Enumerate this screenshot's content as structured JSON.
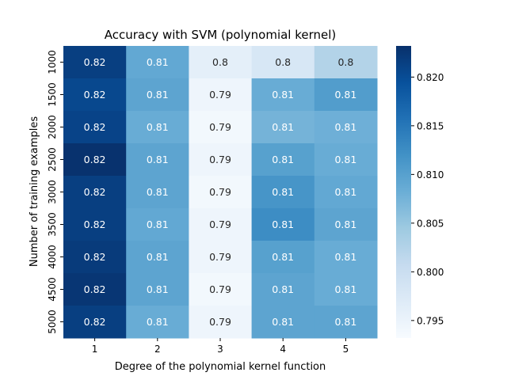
{
  "chart_data": {
    "type": "heatmap",
    "title": "Accuracy with SVM (polynomial kernel)",
    "xlabel": "Degree of the polynomial kernel function",
    "ylabel": "Number of training examples",
    "x_categories": [
      "1",
      "2",
      "3",
      "4",
      "5"
    ],
    "y_categories": [
      "1000",
      "1500",
      "2000",
      "2500",
      "3000",
      "3500",
      "4000",
      "4500",
      "5000"
    ],
    "values": [
      [
        0.8215,
        0.809,
        0.796,
        0.798,
        0.8025
      ],
      [
        0.8205,
        0.8095,
        0.7945,
        0.8085,
        0.8105
      ],
      [
        0.821,
        0.8085,
        0.794,
        0.8075,
        0.808
      ],
      [
        0.823,
        0.8095,
        0.7945,
        0.81,
        0.8085
      ],
      [
        0.8215,
        0.8095,
        0.794,
        0.8115,
        0.809
      ],
      [
        0.8215,
        0.809,
        0.7945,
        0.8125,
        0.8095
      ],
      [
        0.822,
        0.8095,
        0.7945,
        0.81,
        0.8085
      ],
      [
        0.8225,
        0.8095,
        0.794,
        0.8095,
        0.8085
      ],
      [
        0.8215,
        0.8085,
        0.7945,
        0.8095,
        0.8095
      ]
    ],
    "annotations": [
      [
        "0.82",
        "0.81",
        "0.8",
        "0.8",
        "0.8"
      ],
      [
        "0.82",
        "0.81",
        "0.79",
        "0.81",
        "0.81"
      ],
      [
        "0.82",
        "0.81",
        "0.79",
        "0.81",
        "0.81"
      ],
      [
        "0.82",
        "0.81",
        "0.79",
        "0.81",
        "0.81"
      ],
      [
        "0.82",
        "0.81",
        "0.79",
        "0.81",
        "0.81"
      ],
      [
        "0.82",
        "0.81",
        "0.79",
        "0.81",
        "0.81"
      ],
      [
        "0.82",
        "0.81",
        "0.79",
        "0.81",
        "0.81"
      ],
      [
        "0.82",
        "0.81",
        "0.79",
        "0.81",
        "0.81"
      ],
      [
        "0.82",
        "0.81",
        "0.79",
        "0.81",
        "0.81"
      ]
    ],
    "colorbar": {
      "colormap": "Blues",
      "range": [
        0.7932,
        0.8232
      ],
      "ticks": [
        0.795,
        0.8,
        0.805,
        0.81,
        0.815,
        0.82
      ],
      "tick_labels": [
        "0.795",
        "0.800",
        "0.805",
        "0.810",
        "0.815",
        "0.820"
      ]
    },
    "grid": false,
    "legend": "colorbar-right"
  }
}
